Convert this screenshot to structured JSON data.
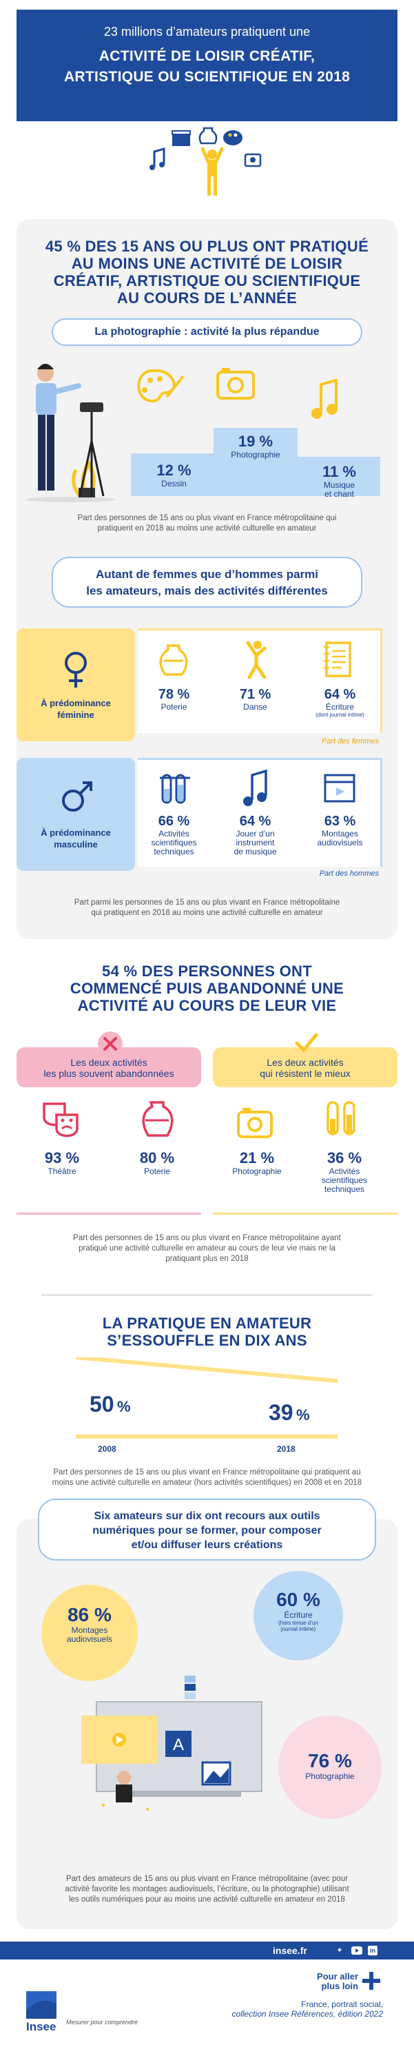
{
  "header": {
    "line1": "23 millions d’amateurs pratiquent une",
    "line2": "ACTIVITÉ DE LOISIR CRÉATIF,",
    "line3": "ARTISTIQUE OU SCIENTIFIQUE EN 2018"
  },
  "section1": {
    "title_lines": [
      "45 % DES 15 ANS OU PLUS ONT PRATIQUÉ",
      "AU MOINS UNE ACTIVITÉ DE LOISIR",
      "CRÉATIF, ARTISTIQUE OU SCIENTIFIQUE",
      "AU COURS DE L’ANNÉE"
    ],
    "pill": "La photographie : activité la plus répandue",
    "podium": [
      {
        "pct": "12 %",
        "label": "Dessin",
        "value": 12
      },
      {
        "pct": "19 %",
        "label": "Photographie",
        "value": 19
      },
      {
        "pct": "11 %",
        "label_lines": [
          "Musique",
          "et chant"
        ],
        "value": 11
      }
    ],
    "note_lines": [
      "Part des personnes de 15 ans ou plus vivant en France métropolitaine qui",
      "pratiquent en 2018 au moins une activité culturelle en amateur"
    ],
    "pill2_lines": [
      "Autant de femmes que d’hommes parmi",
      "les amateurs, mais des activités différentes"
    ],
    "female": {
      "label_lines": [
        "À prédominance",
        "féminine"
      ],
      "items": [
        {
          "pct": "78 %",
          "label": "Poterie",
          "icon": "vase-icon"
        },
        {
          "pct": "71 %",
          "label": "Danse",
          "icon": "dancer-icon"
        },
        {
          "pct": "64 %",
          "label": "Écriture",
          "sub": "(dont journal intime)",
          "icon": "notebook-icon"
        }
      ],
      "tag": "Part des femmes"
    },
    "male": {
      "label_lines": [
        "À prédominance",
        "masculine"
      ],
      "items": [
        {
          "pct": "66 %",
          "label_lines": [
            "Activités",
            "scientifiques",
            "techniques"
          ],
          "icon": "test-tubes-icon"
        },
        {
          "pct": "64 %",
          "label_lines": [
            "Jouer d’un",
            "instrument",
            "de musique"
          ],
          "icon": "music-note-icon"
        },
        {
          "pct": "63 %",
          "label_lines": [
            "Montages",
            "audiovisuels"
          ],
          "icon": "clapperboard-icon"
        }
      ],
      "tag": "Part des hommes"
    },
    "note2_lines": [
      "Part parmi les personnes de 15 ans ou plus vivant en France métropolitaine",
      "qui pratiquent en 2018 au moins une activité culturelle en amateur"
    ]
  },
  "section2": {
    "title_lines": [
      "54 % DES PERSONNES ONT",
      "COMMENCÉ PUIS ABANDONNÉ UNE",
      "ACTIVITÉ AU COURS DE LEUR VIE"
    ],
    "abandoned": {
      "title_lines": [
        "Les deux activités",
        "les plus souvent abandonnées"
      ],
      "items": [
        {
          "pct": "93 %",
          "label": "Théâtre",
          "icon": "theatre-masks-icon"
        },
        {
          "pct": "80 %",
          "label": "Poterie",
          "icon": "vase-icon"
        }
      ]
    },
    "resist": {
      "title_lines": [
        "Les deux activités",
        "qui résistent le mieux"
      ],
      "items": [
        {
          "pct": "21 %",
          "label": "Photographie",
          "icon": "camera-icon"
        },
        {
          "pct": "36 %",
          "label_lines": [
            "Activités",
            "scientifiques",
            "techniques"
          ],
          "icon": "test-tubes-icon"
        }
      ]
    },
    "note_lines": [
      "Part des personnes de 15 ans ou plus vivant en France métropolitaine ayant",
      "pratiqué une activité culturelle en amateur au cours de leur vie mais ne la",
      "pratiquant plus en 2018"
    ]
  },
  "section3": {
    "title_lines": [
      "LA PRATIQUE EN AMATEUR",
      "S’ESSOUFFLE EN DIX ANS"
    ],
    "values": [
      {
        "year": "2008",
        "pct_num": "50",
        "pct_sign": "%",
        "value": 50
      },
      {
        "year": "2018",
        "pct_num": "39",
        "pct_sign": "%",
        "value": 39
      }
    ],
    "note_lines": [
      "Part des personnes de 15 ans ou plus vivant en France métropolitaine qui pratiquent au",
      "moins une activité culturelle en amateur (hors activités scientifiques) en 2008 et en 2018"
    ]
  },
  "section4": {
    "pill_lines": [
      "Six amateurs sur dix ont recours aux outils",
      "numériques pour se former, pour composer",
      "et/ou diffuser leurs créations"
    ],
    "bubbles": [
      {
        "pct": "86 %",
        "label_lines": [
          "Montages",
          "audiovisuels"
        ]
      },
      {
        "pct": "60 %",
        "label": "Écriture",
        "sub_lines": [
          "(hors tenue d’un",
          "journal intime)"
        ]
      },
      {
        "pct": "76 %",
        "label": "Photographie"
      }
    ],
    "note_lines": [
      "Part des amateurs de 15 ans ou plus vivant en France métropolitaine (avec pour",
      "activité favorite les montages audiovisuels, l’écriture, ou la photographie) utilisant",
      "les outils numériques pour au moins une activité culturelle en amateur en 2018"
    ]
  },
  "footer": {
    "site": "insee.fr",
    "brand": "Insee",
    "slogan": "Mesurer pour comprendre",
    "more_lines": [
      "Pour aller",
      "plus loin"
    ],
    "ref_line1": "France, portrait social,",
    "ref_line2": "collection Insee Références, édition 2022"
  },
  "colors": {
    "navy": "#1e4b9c",
    "yellow": "#f9c623",
    "light_blue": "#bcd9f5",
    "pink": "#f5b6c8",
    "red": "#e23b5c",
    "grey_panel": "#f3f3f3"
  }
}
